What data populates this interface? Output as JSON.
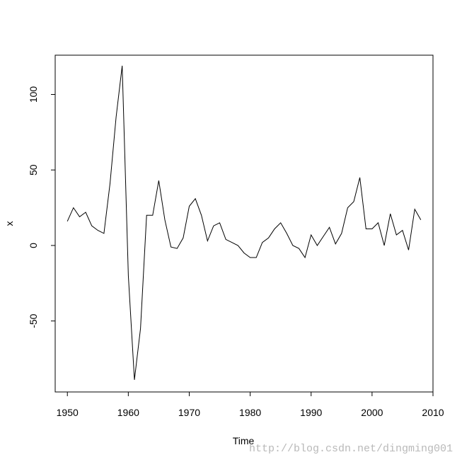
{
  "chart_data": {
    "type": "line",
    "xlabel": "Time",
    "ylabel": "x",
    "xlim": [
      1948,
      2010
    ],
    "ylim": [
      -97,
      126
    ],
    "x_ticks": [
      1950,
      1960,
      1970,
      1980,
      1990,
      2000,
      2010
    ],
    "y_ticks": [
      -50,
      0,
      50,
      100
    ],
    "grid": false,
    "series": [
      {
        "x": [
          1950,
          1951,
          1952,
          1953,
          1954,
          1955,
          1956,
          1957,
          1958,
          1959,
          1960,
          1961,
          1962,
          1963,
          1964,
          1965,
          1966,
          1967,
          1968,
          1969,
          1970,
          1971,
          1972,
          1973,
          1974,
          1975,
          1976,
          1977,
          1978,
          1979,
          1980,
          1981,
          1982,
          1983,
          1984,
          1985,
          1986,
          1987,
          1988,
          1989,
          1990,
          1991,
          1992,
          1993,
          1994,
          1995,
          1996,
          1997,
          1998,
          1999,
          2000,
          2001,
          2002,
          2003,
          2004,
          2005,
          2006,
          2007,
          2008
        ],
        "values": [
          16,
          25,
          19,
          22,
          13,
          10,
          8,
          41,
          85,
          119,
          -20,
          -89,
          -55,
          20,
          20,
          43,
          17,
          -1,
          -2,
          5,
          26,
          31,
          20,
          3,
          13,
          15,
          4,
          2,
          0,
          -5,
          -8,
          -8,
          2,
          5,
          11,
          15,
          8,
          0,
          -2,
          -8,
          7,
          0,
          6,
          12,
          1,
          8,
          25,
          29,
          45,
          11,
          11,
          15,
          0,
          21,
          7,
          10,
          -3,
          24,
          17
        ]
      }
    ]
  },
  "watermark": "http://blog.csdn.net/dingming001"
}
